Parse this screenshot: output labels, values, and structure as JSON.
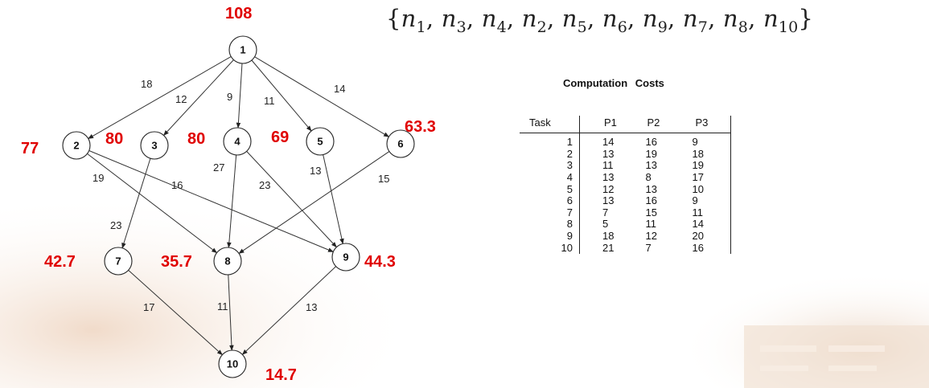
{
  "graph": {
    "nodes": [
      {
        "id": "1",
        "rank": "108"
      },
      {
        "id": "2",
        "rank": "77"
      },
      {
        "id": "3",
        "rank": "80"
      },
      {
        "id": "4",
        "rank": "80"
      },
      {
        "id": "5",
        "rank": "69"
      },
      {
        "id": "6",
        "rank": "63.3"
      },
      {
        "id": "7",
        "rank": "42.7"
      },
      {
        "id": "8",
        "rank": "35.7"
      },
      {
        "id": "9",
        "rank": "44.3"
      },
      {
        "id": "10",
        "rank": "14.7"
      }
    ],
    "edges": [
      {
        "from": "1",
        "to": "2",
        "weight": "18"
      },
      {
        "from": "1",
        "to": "3",
        "weight": "12"
      },
      {
        "from": "1",
        "to": "4",
        "weight": "9"
      },
      {
        "from": "1",
        "to": "5",
        "weight": "11"
      },
      {
        "from": "1",
        "to": "6",
        "weight": "14"
      },
      {
        "from": "2",
        "to": "8",
        "weight": "19"
      },
      {
        "from": "2",
        "to": "9",
        "weight": "16"
      },
      {
        "from": "3",
        "to": "7",
        "weight": "23"
      },
      {
        "from": "4",
        "to": "8",
        "weight": "27"
      },
      {
        "from": "4",
        "to": "9",
        "weight": "23"
      },
      {
        "from": "5",
        "to": "9",
        "weight": "13"
      },
      {
        "from": "6",
        "to": "8",
        "weight": "15"
      },
      {
        "from": "7",
        "to": "10",
        "weight": "17"
      },
      {
        "from": "8",
        "to": "10",
        "weight": "11"
      },
      {
        "from": "9",
        "to": "10",
        "weight": "13"
      }
    ]
  },
  "order": {
    "text": "{n1, n3, n4, n2, n5, n6, n9, n7, n8, n10}",
    "items": [
      "1",
      "3",
      "4",
      "2",
      "5",
      "6",
      "9",
      "7",
      "8",
      "10"
    ]
  },
  "costs": {
    "title": "Computation   Costs",
    "headers": [
      "Task",
      "P1",
      "P2",
      "P3"
    ],
    "rows": [
      [
        "1",
        "14",
        "16",
        "9"
      ],
      [
        "2",
        "13",
        "19",
        "18"
      ],
      [
        "3",
        "11",
        "13",
        "19"
      ],
      [
        "4",
        "13",
        "8",
        "17"
      ],
      [
        "5",
        "12",
        "13",
        "10"
      ],
      [
        "6",
        "13",
        "16",
        "9"
      ],
      [
        "7",
        "7",
        "15",
        "11"
      ],
      [
        "8",
        "5",
        "11",
        "14"
      ],
      [
        "9",
        "18",
        "12",
        "20"
      ],
      [
        "10",
        "21",
        "7",
        "16"
      ]
    ]
  },
  "colors": {
    "rank": "#e00000",
    "ink": "#222222",
    "background_tint": "#e9cdb8"
  }
}
